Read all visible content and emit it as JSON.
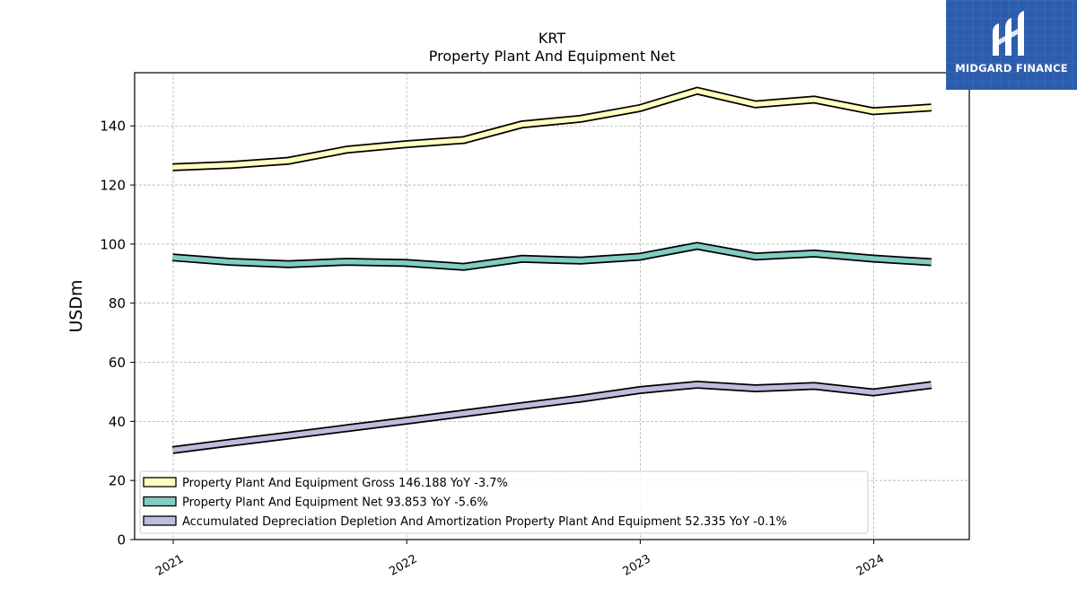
{
  "brand": {
    "name": "MIDGARD FINANCE",
    "logo_icon": "midgard-m-logo-icon",
    "background": "#2b5cad"
  },
  "chart_data": {
    "type": "line",
    "title": "KRT",
    "subtitle": "Property Plant And Equipment Net",
    "ylabel": "USDm",
    "xlabel": "",
    "ylim": [
      0,
      158
    ],
    "yticks": [
      0,
      20,
      40,
      60,
      80,
      100,
      120,
      140
    ],
    "x_tick_labels": [
      "2021",
      "2022",
      "2023",
      "2024"
    ],
    "grid": true,
    "legend_position": "bottom-left",
    "x": [
      "2020-12-31",
      "2021-03-31",
      "2021-06-30",
      "2021-09-30",
      "2021-12-31",
      "2022-03-31",
      "2022-06-30",
      "2022-09-30",
      "2022-12-31",
      "2023-03-31",
      "2023-06-30",
      "2023-09-30",
      "2023-12-31",
      "2024-03-31"
    ],
    "series": [
      {
        "name": "Property Plant And Equipment Gross",
        "legend_label": "Property Plant And Equipment Gross  146.188 YoY -3.7%",
        "color": "#ffffbf",
        "values": [
          126.0,
          126.8,
          128.2,
          132.0,
          133.8,
          135.2,
          140.5,
          142.4,
          146.0,
          151.9,
          147.3,
          148.9,
          145.0,
          146.2
        ]
      },
      {
        "name": "Property Plant And Equipment Net",
        "legend_label": "Property Plant And Equipment Net  93.853 YoY -5.6%",
        "color": "#80cdc1",
        "values": [
          95.5,
          94.0,
          93.2,
          94.0,
          93.6,
          92.3,
          95.0,
          94.4,
          95.7,
          99.4,
          95.8,
          96.8,
          95.1,
          93.9
        ]
      },
      {
        "name": "Accumulated Depreciation Depletion And Amortization Property Plant And Equipment",
        "legend_label": "Accumulated Depreciation Depletion And Amortization Property Plant And Equipment  52.335 YoY -0.1%",
        "color": "#bcbddc",
        "values": [
          30.3,
          32.8,
          35.2,
          37.7,
          40.2,
          42.7,
          45.2,
          47.7,
          50.6,
          52.4,
          51.2,
          52.0,
          49.8,
          52.3
        ]
      }
    ]
  }
}
